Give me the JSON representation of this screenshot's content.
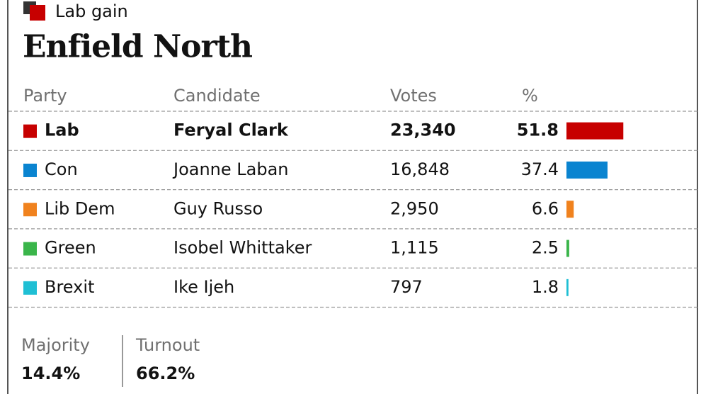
{
  "header": {
    "badge": "Lab gain",
    "title": "Enfield North"
  },
  "table": {
    "columns": [
      "Party",
      "Candidate",
      "Votes",
      "%"
    ],
    "rows": [
      {
        "party": "Lab",
        "candidate": "Feryal Clark",
        "votes": "23,340",
        "percent": 51.8,
        "color": "#c70000",
        "winner": true
      },
      {
        "party": "Con",
        "candidate": "Joanne Laban",
        "votes": "16,848",
        "percent": 37.4,
        "color": "#0a84d0"
      },
      {
        "party": "Lib Dem",
        "candidate": "Guy Russo",
        "votes": "2,950",
        "percent": 6.6,
        "color": "#f0821e"
      },
      {
        "party": "Green",
        "candidate": "Isobel Whittaker",
        "votes": "1,115",
        "percent": 2.5,
        "color": "#3ab54a"
      },
      {
        "party": "Brexit",
        "candidate": "Ike Ijeh",
        "votes": "797",
        "percent": 1.8,
        "color": "#1fbfd4"
      }
    ]
  },
  "footer": {
    "majority_label": "Majority",
    "majority": "14.4%",
    "turnout_label": "Turnout",
    "turnout": "66.2%"
  }
}
